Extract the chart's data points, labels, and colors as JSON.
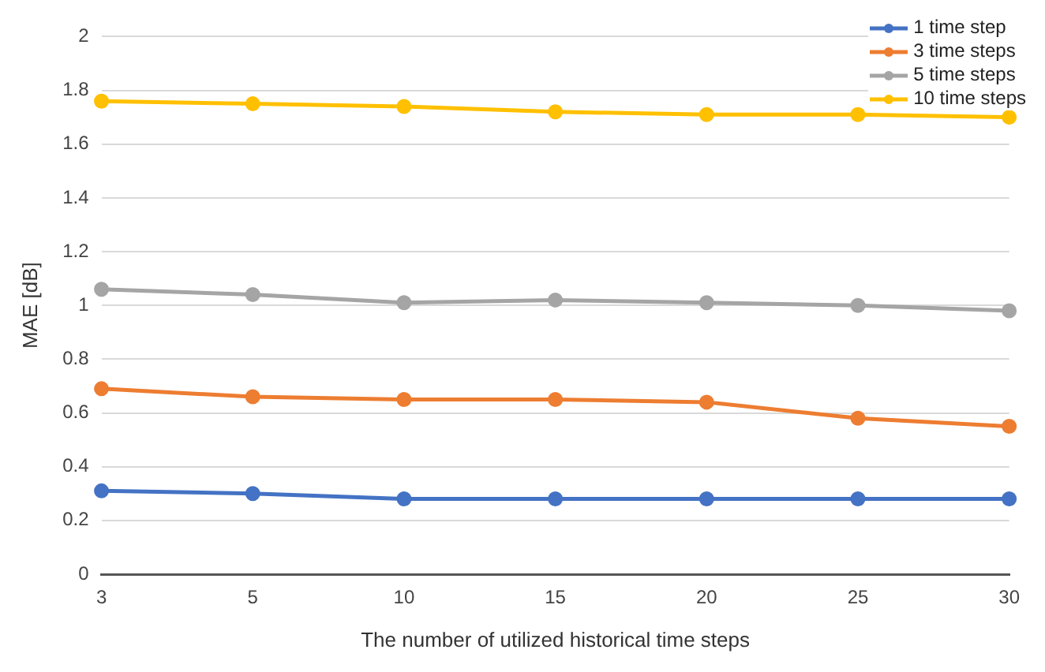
{
  "chart_data": {
    "type": "line",
    "xlabel": "The number of utilized historical time steps",
    "ylabel": "MAE [dB]",
    "categories": [
      "3",
      "5",
      "10",
      "15",
      "20",
      "25",
      "30"
    ],
    "series": [
      {
        "name": "1 time step",
        "color": "#4472c4",
        "values": [
          0.31,
          0.3,
          0.28,
          0.28,
          0.28,
          0.28,
          0.28
        ]
      },
      {
        "name": "3 time steps",
        "color": "#ed7d31",
        "values": [
          0.69,
          0.66,
          0.65,
          0.65,
          0.64,
          0.58,
          0.55
        ]
      },
      {
        "name": "5 time steps",
        "color": "#a5a5a5",
        "values": [
          1.06,
          1.04,
          1.01,
          1.02,
          1.01,
          1.0,
          0.98
        ]
      },
      {
        "name": "10 time steps",
        "color": "#ffc000",
        "values": [
          1.76,
          1.75,
          1.74,
          1.72,
          1.71,
          1.71,
          1.7
        ]
      }
    ],
    "ylim": [
      0,
      2
    ],
    "yticks": [
      0,
      0.2,
      0.4,
      0.6,
      0.8,
      1,
      1.2,
      1.4,
      1.6,
      1.8,
      2
    ],
    "grid": "y",
    "legend": "top right",
    "marker": "circle",
    "line_style": "solid"
  }
}
